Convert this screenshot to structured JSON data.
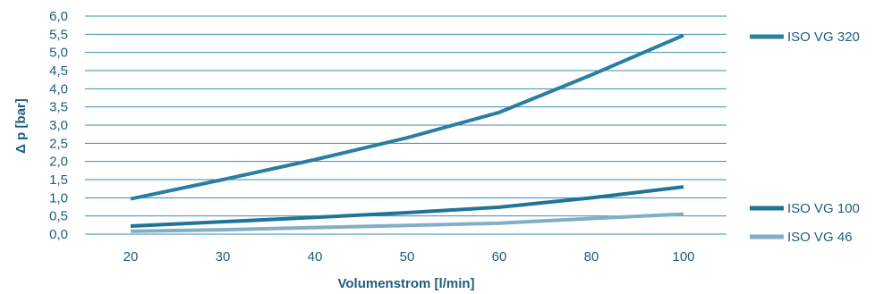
{
  "chart_data": {
    "type": "line",
    "xlabel": "Volumenstrom [l/min]",
    "ylabel": "Δ p [bar]",
    "categories": [
      "20",
      "30",
      "40",
      "50",
      "60",
      "80",
      "100"
    ],
    "ylim": [
      0.0,
      6.0
    ],
    "yticks": [
      "0,0",
      "0,5",
      "1,0",
      "1,5",
      "2,0",
      "2,5",
      "3,0",
      "3,5",
      "4,0",
      "4,5",
      "5,0",
      "5,5",
      "6,0"
    ],
    "grid": true,
    "legend_position": "right",
    "series": [
      {
        "name": "ISO VG 320",
        "values": [
          0.97,
          1.5,
          2.05,
          2.65,
          3.35,
          4.38,
          5.47
        ],
        "color": "#2b7ea1"
      },
      {
        "name": "ISO VG 100",
        "values": [
          0.22,
          0.34,
          0.46,
          0.59,
          0.74,
          1.0,
          1.3
        ],
        "color": "#1f7497"
      },
      {
        "name": "ISO VG 46",
        "values": [
          0.08,
          0.12,
          0.18,
          0.24,
          0.3,
          0.43,
          0.55
        ],
        "color": "#82afc7"
      }
    ]
  }
}
